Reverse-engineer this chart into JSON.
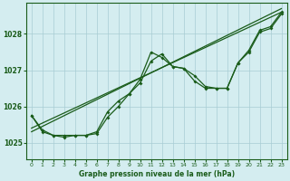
{
  "xlabel": "Graphe pression niveau de la mer (hPa)",
  "x_ticks": [
    0,
    1,
    2,
    3,
    4,
    5,
    6,
    7,
    8,
    9,
    10,
    11,
    12,
    13,
    14,
    15,
    16,
    17,
    18,
    19,
    20,
    21,
    22,
    23
  ],
  "y_ticks": [
    1025,
    1026,
    1027,
    1028
  ],
  "ylim": [
    1024.55,
    1028.85
  ],
  "xlim": [
    -0.5,
    23.5
  ],
  "background_color": "#d4edf0",
  "grid_color": "#a8cdd4",
  "line_color": "#1a5c1a",
  "series1": {
    "x": [
      0,
      1,
      2,
      3,
      4,
      5,
      6,
      7,
      8,
      9,
      10,
      11,
      12,
      13,
      14,
      15,
      16,
      17,
      18,
      19,
      20,
      21,
      22,
      23
    ],
    "y": [
      1025.75,
      1025.3,
      1025.2,
      1025.15,
      1025.2,
      1025.2,
      1025.25,
      1025.7,
      1026.0,
      1026.35,
      1026.65,
      1027.25,
      1027.45,
      1027.1,
      1027.05,
      1026.7,
      1026.5,
      1026.5,
      1026.5,
      1027.2,
      1027.5,
      1028.05,
      1028.15,
      1028.55
    ]
  },
  "series2": {
    "x": [
      0,
      1,
      2,
      3,
      4,
      5,
      6,
      7,
      8,
      9,
      10,
      11,
      12,
      13,
      14,
      15,
      16,
      17,
      18,
      19,
      20,
      21,
      22,
      23
    ],
    "y": [
      1025.75,
      1025.35,
      1025.2,
      1025.2,
      1025.2,
      1025.2,
      1025.3,
      1025.85,
      1026.15,
      1026.35,
      1026.75,
      1027.5,
      1027.35,
      1027.1,
      1027.05,
      1026.85,
      1026.55,
      1026.5,
      1026.5,
      1027.2,
      1027.55,
      1028.1,
      1028.2,
      1028.6
    ]
  },
  "trend1": {
    "x": [
      0,
      23
    ],
    "y": [
      1025.4,
      1028.6
    ]
  },
  "trend2": {
    "x": [
      0,
      23
    ],
    "y": [
      1025.3,
      1028.7
    ]
  }
}
